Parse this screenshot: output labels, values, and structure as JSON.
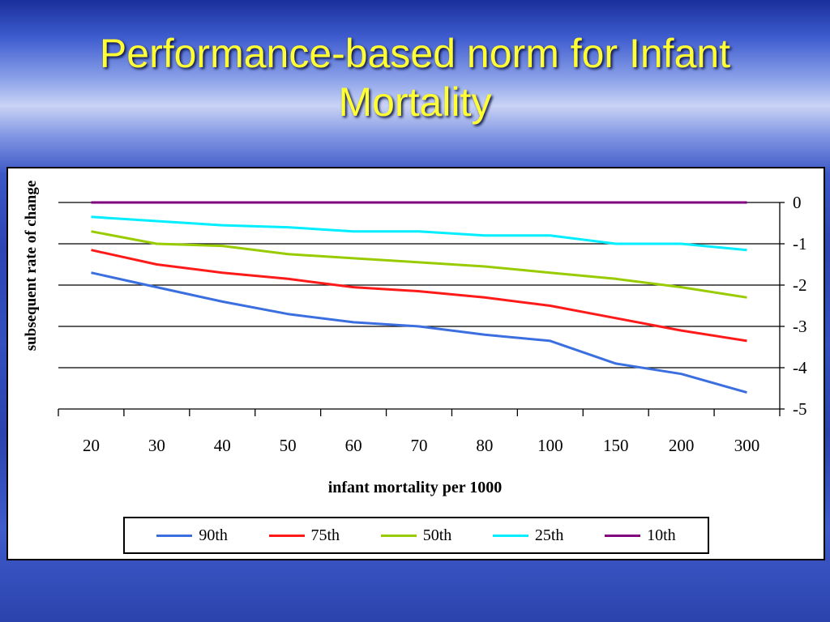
{
  "slide": {
    "title_line1": "Performance-based norm for Infant",
    "title_line2": "Mortality"
  },
  "chart_data": {
    "type": "line",
    "title": "",
    "xlabel": "infant mortality per 1000",
    "ylabel": "subsequent rate of change",
    "categories": [
      "20",
      "30",
      "40",
      "50",
      "60",
      "70",
      "80",
      "100",
      "150",
      "200",
      "300"
    ],
    "ylim": [
      -5,
      0
    ],
    "yticks": [
      0,
      -1,
      -2,
      -3,
      -4,
      -5
    ],
    "y_axis_position": "right",
    "grid": "horizontal",
    "legend_position": "bottom",
    "series": [
      {
        "name": "90th",
        "color": "#3b6fe0",
        "values": [
          -1.7,
          -2.05,
          -2.4,
          -2.7,
          -2.9,
          -3.0,
          -3.2,
          -3.35,
          -3.9,
          -4.15,
          -4.6
        ]
      },
      {
        "name": "75th",
        "color": "#ff1a1a",
        "values": [
          -1.15,
          -1.5,
          -1.7,
          -1.85,
          -2.05,
          -2.15,
          -2.3,
          -2.5,
          -2.8,
          -3.1,
          -3.35
        ]
      },
      {
        "name": "50th",
        "color": "#99cc00",
        "values": [
          -0.7,
          -1.0,
          -1.05,
          -1.25,
          -1.35,
          -1.45,
          -1.55,
          -1.7,
          -1.85,
          -2.05,
          -2.3
        ]
      },
      {
        "name": "25th",
        "color": "#00eeff",
        "values": [
          -0.35,
          -0.45,
          -0.55,
          -0.6,
          -0.7,
          -0.7,
          -0.8,
          -0.8,
          -1.0,
          -1.0,
          -1.15
        ]
      },
      {
        "name": "10th",
        "color": "#800080",
        "values": [
          0,
          0,
          0,
          0,
          0,
          0,
          0,
          0,
          0,
          0,
          0
        ]
      }
    ]
  }
}
